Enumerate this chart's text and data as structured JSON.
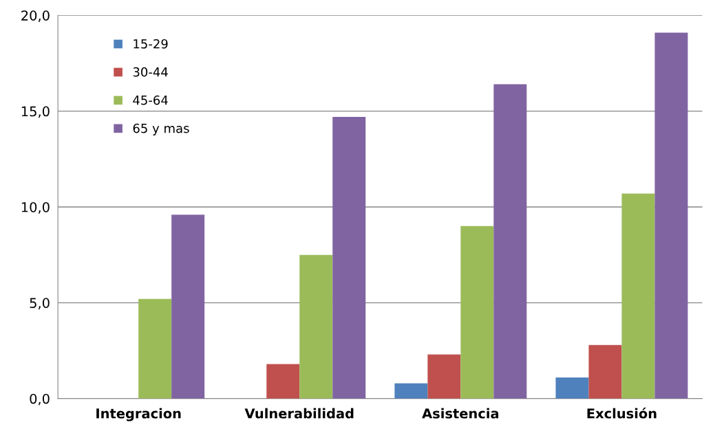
{
  "chart_data": {
    "type": "bar",
    "categories": [
      "Integracion",
      "Vulnerabilidad",
      "Asistencia",
      "Exclusión"
    ],
    "series": [
      {
        "name": "15-29",
        "color": "#4f81bd",
        "values": [
          0,
          0,
          0.8,
          1.1
        ]
      },
      {
        "name": "30-44",
        "color": "#c0504d",
        "values": [
          0,
          1.8,
          2.3,
          2.8
        ]
      },
      {
        "name": "45-64",
        "color": "#9bbb59",
        "values": [
          5.2,
          7.5,
          9.0,
          10.7
        ]
      },
      {
        "name": "65 y mas",
        "color": "#8064a2",
        "values": [
          9.6,
          14.7,
          16.4,
          19.1
        ]
      }
    ],
    "ylim": [
      0,
      20
    ],
    "yticks": [
      {
        "value": 0,
        "label": "0,0"
      },
      {
        "value": 5,
        "label": "5,0"
      },
      {
        "value": 10,
        "label": "10,0"
      },
      {
        "value": 15,
        "label": "15,0"
      },
      {
        "value": 20,
        "label": "20,0"
      }
    ],
    "grid": "y",
    "legend": "top left"
  }
}
